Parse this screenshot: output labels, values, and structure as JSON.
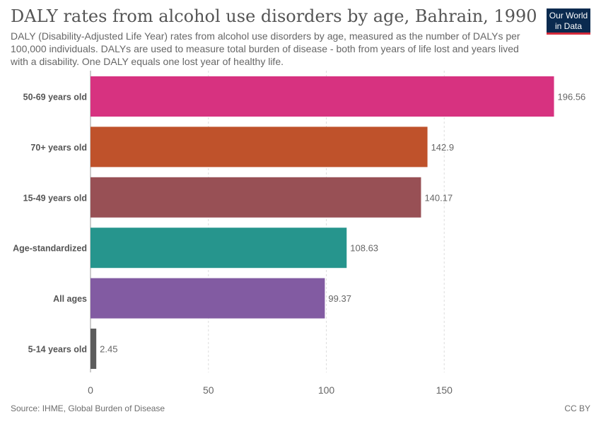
{
  "header": {
    "title": "DALY rates from alcohol use disorders by age, Bahrain, 1990",
    "subtitle": "DALY (Disability-Adjusted Life Year) rates from alcohol use disorders by age, measured as the number of DALYs per 100,000 individuals. DALYs are used to measure total burden of disease - both from years of life lost and years lived with a disability. One DALY equals one lost year of healthy life."
  },
  "logo": {
    "line1": "Our World",
    "line2": "in Data"
  },
  "footer": {
    "source": "Source: IHME, Global Burden of Disease",
    "license": "CC BY"
  },
  "chart_data": {
    "type": "bar",
    "orientation": "horizontal",
    "title": "DALY rates from alcohol use disorders by age, Bahrain, 1990",
    "xlabel": "",
    "ylabel": "",
    "xlim": [
      0,
      200
    ],
    "xticks": [
      0,
      50,
      100,
      150
    ],
    "grid": true,
    "categories": [
      "50-69 years old",
      "70+ years old",
      "15-49 years old",
      "Age-standardized",
      "All ages",
      "5-14 years old"
    ],
    "values": [
      196.56,
      142.9,
      140.17,
      108.63,
      99.37,
      2.45
    ],
    "value_labels": [
      "196.56",
      "142.9",
      "140.17",
      "108.63",
      "99.37",
      "2.45"
    ],
    "colors": [
      "#d73280",
      "#bf522b",
      "#985055",
      "#26958d",
      "#825ba2",
      "#5c5c5c"
    ]
  }
}
